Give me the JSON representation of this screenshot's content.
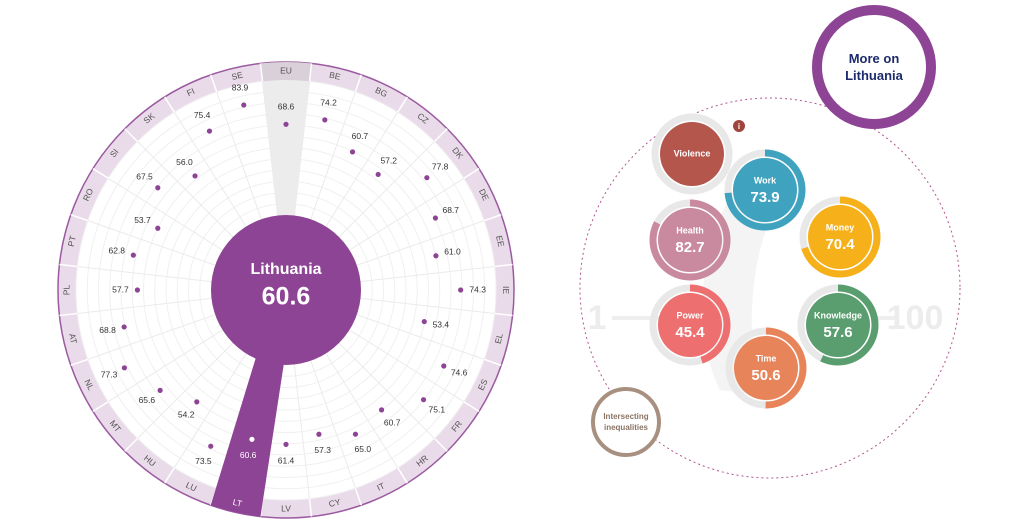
{
  "chart_data": {
    "type": "radial",
    "categories": [
      "EU",
      "BE",
      "BG",
      "CZ",
      "DK",
      "DE",
      "EE",
      "IE",
      "EL",
      "ES",
      "FR",
      "HR",
      "IT",
      "CY",
      "LV",
      "LT",
      "LU",
      "HU",
      "MT",
      "NL",
      "AT",
      "PL",
      "PT",
      "RO",
      "SI",
      "SK",
      "FI",
      "SE"
    ],
    "values": [
      68.6,
      74.2,
      60.7,
      57.2,
      77.8,
      68.7,
      61.0,
      74.3,
      53.4,
      74.6,
      75.1,
      60.7,
      65.0,
      57.3,
      61.4,
      60.6,
      73.5,
      54.2,
      65.6,
      77.3,
      68.8,
      57.7,
      62.8,
      53.7,
      67.5,
      56.0,
      75.4,
      83.9
    ],
    "value_labels": [
      "68.6",
      "74.2",
      "60.7",
      "57.2",
      "77.8",
      "68.7",
      "61.0",
      "74.3",
      "53.4",
      "74.6",
      "75.1",
      "60.7",
      "65.0",
      "57.3",
      "61.4",
      "60.6",
      "73.5",
      "54.2",
      "65.6",
      "77.3",
      "68.8",
      "57.7",
      "62.8",
      "53.7",
      "67.5",
      "56.0",
      "75.4",
      "83.9"
    ],
    "rlim": [
      0,
      100
    ],
    "color": "#8e4494",
    "highlight": "LT",
    "reference": "EU"
  },
  "focus": {
    "name": "Lithuania",
    "score": 60.6
  },
  "more_link": "More on Lithuania",
  "intersecting": "Intersecting inequalities",
  "scale": {
    "min": 1,
    "max": 100
  },
  "domains": [
    {
      "name": "Violence",
      "color": "#b5564d"
    },
    {
      "name": "Work",
      "value": 73.9,
      "color": "#3fa3c0"
    },
    {
      "name": "Money",
      "value": 70.4,
      "color": "#f5b01a"
    },
    {
      "name": "Health",
      "value": 82.7,
      "color": "#c98aa0"
    },
    {
      "name": "Knowledge",
      "value": 57.6,
      "color": "#5a9e6f"
    },
    {
      "name": "Power",
      "value": 45.4,
      "color": "#ee6f6f"
    },
    {
      "name": "Time",
      "value": 50.6,
      "color": "#e8845a"
    }
  ]
}
